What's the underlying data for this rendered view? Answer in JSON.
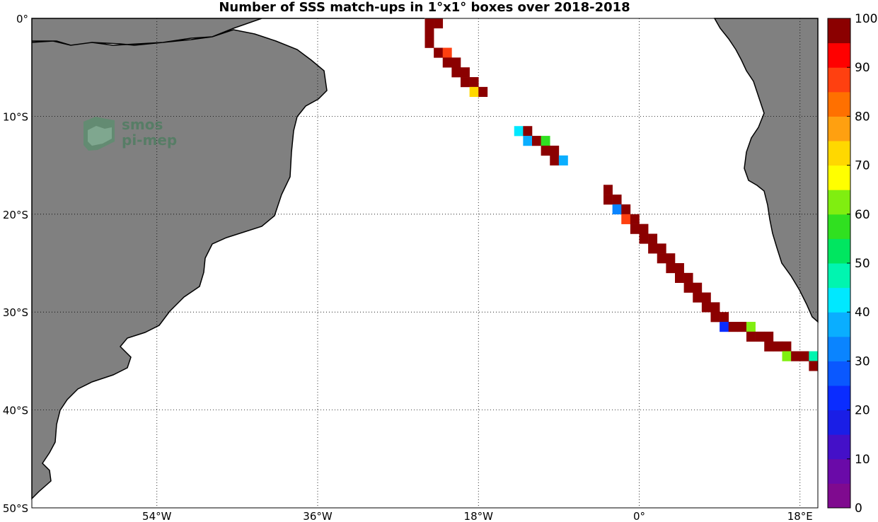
{
  "title": "Number of SSS match-ups in 1°x1° boxes over 2018-2018",
  "logo": {
    "line1": "smos",
    "line2": "pi-mep"
  },
  "map": {
    "lon_range": [
      -68,
      20
    ],
    "lat_range": [
      -50,
      0
    ],
    "ocean_color": "#ffffff",
    "land_color": "#808080",
    "grid": "dotted",
    "lat_ticks": [
      {
        "value": 0,
        "label": "0°"
      },
      {
        "value": -10,
        "label": "10°S"
      },
      {
        "value": -20,
        "label": "20°S"
      },
      {
        "value": -30,
        "label": "30°S"
      },
      {
        "value": -40,
        "label": "40°S"
      },
      {
        "value": -50,
        "label": "50°S"
      }
    ],
    "lon_ticks": [
      {
        "value": -54,
        "label": "54°W"
      },
      {
        "value": -36,
        "label": "36°W"
      },
      {
        "value": -18,
        "label": "18°W"
      },
      {
        "value": 0,
        "label": "0°"
      },
      {
        "value": 18,
        "label": "18°E"
      }
    ]
  },
  "colorbar": {
    "min": 0,
    "max": 100,
    "step": 5,
    "ticks": [
      0,
      10,
      20,
      30,
      40,
      50,
      60,
      70,
      80,
      90,
      100
    ],
    "colors": [
      "#7f0a8f",
      "#6a0aa8",
      "#4410c8",
      "#1a1ee6",
      "#0a2cff",
      "#0a58ff",
      "#0a84ff",
      "#0aaeff",
      "#00e8ff",
      "#00f5b0",
      "#00e660",
      "#30e020",
      "#80ee10",
      "#ffff00",
      "#ffd800",
      "#ffa010",
      "#ff7000",
      "#ff4010",
      "#ff0000",
      "#d00000"
    ],
    "top_color": "#8b0000"
  },
  "chart_data": {
    "type": "heatmap",
    "title": "Number of SSS match-ups in 1°x1° boxes over 2018-2018",
    "x_unit": "longitude (deg)",
    "y_unit": "latitude (deg)",
    "cells": [
      {
        "lon": -23.5,
        "lat": -0.5,
        "v": 100
      },
      {
        "lon": -22.5,
        "lat": -0.5,
        "v": 100
      },
      {
        "lon": -23.5,
        "lat": -1.5,
        "v": 100
      },
      {
        "lon": -23.5,
        "lat": -2.5,
        "v": 100
      },
      {
        "lon": -22.5,
        "lat": -3.5,
        "v": 100
      },
      {
        "lon": -21.5,
        "lat": -3.5,
        "v": 88
      },
      {
        "lon": -21.5,
        "lat": -4.5,
        "v": 100
      },
      {
        "lon": -20.5,
        "lat": -4.5,
        "v": 100
      },
      {
        "lon": -20.5,
        "lat": -5.5,
        "v": 100
      },
      {
        "lon": -19.5,
        "lat": -5.5,
        "v": 100
      },
      {
        "lon": -19.5,
        "lat": -6.5,
        "v": 100
      },
      {
        "lon": -18.5,
        "lat": -6.5,
        "v": 100
      },
      {
        "lon": -18.5,
        "lat": -7.5,
        "v": 72
      },
      {
        "lon": -17.5,
        "lat": -7.5,
        "v": 100
      },
      {
        "lon": -13.5,
        "lat": -11.5,
        "v": 40
      },
      {
        "lon": -12.5,
        "lat": -11.5,
        "v": 100
      },
      {
        "lon": -12.5,
        "lat": -12.5,
        "v": 35
      },
      {
        "lon": -11.5,
        "lat": -12.5,
        "v": 100
      },
      {
        "lon": -10.5,
        "lat": -12.5,
        "v": 58
      },
      {
        "lon": -10.5,
        "lat": -13.5,
        "v": 100
      },
      {
        "lon": -9.5,
        "lat": -13.5,
        "v": 100
      },
      {
        "lon": -9.5,
        "lat": -14.5,
        "v": 100
      },
      {
        "lon": -8.5,
        "lat": -14.5,
        "v": 36
      },
      {
        "lon": -3.5,
        "lat": -17.5,
        "v": 100
      },
      {
        "lon": -3.5,
        "lat": -18.5,
        "v": 100
      },
      {
        "lon": -2.5,
        "lat": -18.5,
        "v": 100
      },
      {
        "lon": -2.5,
        "lat": -19.5,
        "v": 30
      },
      {
        "lon": -1.5,
        "lat": -19.5,
        "v": 100
      },
      {
        "lon": -1.5,
        "lat": -20.5,
        "v": 88
      },
      {
        "lon": -0.5,
        "lat": -20.5,
        "v": 100
      },
      {
        "lon": -0.5,
        "lat": -21.5,
        "v": 100
      },
      {
        "lon": 0.5,
        "lat": -21.5,
        "v": 100
      },
      {
        "lon": 0.5,
        "lat": -22.5,
        "v": 100
      },
      {
        "lon": 1.5,
        "lat": -22.5,
        "v": 100
      },
      {
        "lon": 1.5,
        "lat": -23.5,
        "v": 100
      },
      {
        "lon": 2.5,
        "lat": -23.5,
        "v": 100
      },
      {
        "lon": 2.5,
        "lat": -24.5,
        "v": 100
      },
      {
        "lon": 3.5,
        "lat": -24.5,
        "v": 100
      },
      {
        "lon": 3.5,
        "lat": -25.5,
        "v": 100
      },
      {
        "lon": 4.5,
        "lat": -25.5,
        "v": 100
      },
      {
        "lon": 4.5,
        "lat": -26.5,
        "v": 100
      },
      {
        "lon": 5.5,
        "lat": -26.5,
        "v": 100
      },
      {
        "lon": 5.5,
        "lat": -27.5,
        "v": 100
      },
      {
        "lon": 6.5,
        "lat": -27.5,
        "v": 100
      },
      {
        "lon": 6.5,
        "lat": -28.5,
        "v": 100
      },
      {
        "lon": 7.5,
        "lat": -28.5,
        "v": 100
      },
      {
        "lon": 7.5,
        "lat": -29.5,
        "v": 100
      },
      {
        "lon": 8.5,
        "lat": -29.5,
        "v": 100
      },
      {
        "lon": 8.5,
        "lat": -30.5,
        "v": 100
      },
      {
        "lon": 9.5,
        "lat": -30.5,
        "v": 100
      },
      {
        "lon": 9.5,
        "lat": -31.5,
        "v": 20
      },
      {
        "lon": 10.5,
        "lat": -31.5,
        "v": 100
      },
      {
        "lon": 11.5,
        "lat": -31.5,
        "v": 100
      },
      {
        "lon": 12.5,
        "lat": -31.5,
        "v": 62
      },
      {
        "lon": 12.5,
        "lat": -32.5,
        "v": 100
      },
      {
        "lon": 13.5,
        "lat": -32.5,
        "v": 100
      },
      {
        "lon": 14.5,
        "lat": -32.5,
        "v": 100
      },
      {
        "lon": 14.5,
        "lat": -33.5,
        "v": 100
      },
      {
        "lon": 15.5,
        "lat": -33.5,
        "v": 100
      },
      {
        "lon": 16.5,
        "lat": -33.5,
        "v": 100
      },
      {
        "lon": 16.5,
        "lat": -34.5,
        "v": 62
      },
      {
        "lon": 17.5,
        "lat": -34.5,
        "v": 100
      },
      {
        "lon": 18.5,
        "lat": -34.5,
        "v": 100
      },
      {
        "lon": 19.5,
        "lat": -34.5,
        "v": 45
      },
      {
        "lon": 19.5,
        "lat": -35.5,
        "v": 100
      }
    ]
  }
}
